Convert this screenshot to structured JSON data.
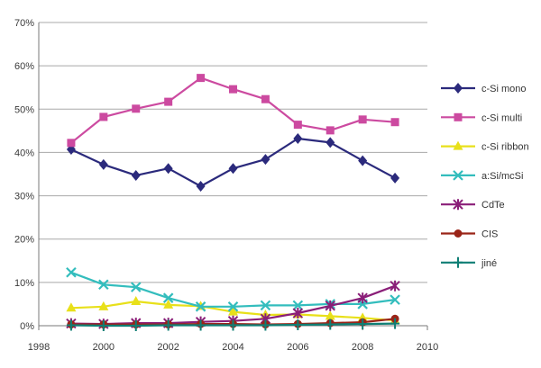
{
  "chart_data": {
    "type": "line",
    "xlim": [
      1998,
      2010
    ],
    "ylim": [
      0,
      70
    ],
    "x_ticks": [
      "1998",
      "2000",
      "2002",
      "2004",
      "2006",
      "2008",
      "2010"
    ],
    "y_ticks": [
      "0%",
      "10%",
      "20%",
      "30%",
      "40%",
      "50%",
      "60%",
      "70%"
    ],
    "grid": "horizontal",
    "legend_position": "right",
    "x": [
      1999,
      2000,
      2001,
      2002,
      2003,
      2004,
      2005,
      2006,
      2007,
      2008,
      2009
    ],
    "series": [
      {
        "name": "c-Si mono",
        "color": "#2b2a7c",
        "marker": "diamond",
        "values": [
          40.7,
          37.2,
          34.7,
          36.3,
          32.2,
          36.3,
          38.4,
          43.2,
          42.3,
          38.1,
          34.1
        ]
      },
      {
        "name": "c-Si multi",
        "color": "#cc4aa0",
        "marker": "square",
        "values": [
          42.2,
          48.2,
          50.1,
          51.7,
          57.2,
          54.6,
          52.3,
          46.4,
          45.1,
          47.6,
          47.0
        ]
      },
      {
        "name": "c-Si ribbon",
        "color": "#e8e01a",
        "marker": "triangle",
        "values": [
          4.1,
          4.4,
          5.6,
          4.8,
          4.5,
          3.2,
          2.5,
          2.6,
          2.2,
          1.8,
          1.2
        ]
      },
      {
        "name": "a:Si/mcSi",
        "color": "#33bdbd",
        "marker": "x",
        "values": [
          12.3,
          9.5,
          8.9,
          6.4,
          4.4,
          4.4,
          4.7,
          4.7,
          5.0,
          5.0,
          6.0
        ]
      },
      {
        "name": "CdTe",
        "color": "#8a1e78",
        "marker": "star",
        "values": [
          0.5,
          0.4,
          0.6,
          0.6,
          0.9,
          1.1,
          1.6,
          2.9,
          4.6,
          6.4,
          9.2
        ]
      },
      {
        "name": "CIS",
        "color": "#9a2418",
        "marker": "circle",
        "values": [
          0.3,
          0.3,
          0.3,
          0.3,
          0.4,
          0.4,
          0.3,
          0.4,
          0.6,
          0.8,
          1.6
        ]
      },
      {
        "name": "jiné",
        "color": "#0f7e74",
        "marker": "plus",
        "values": [
          0.1,
          0.0,
          0.0,
          0.1,
          0.1,
          0.1,
          0.1,
          0.2,
          0.3,
          0.4,
          0.5
        ]
      }
    ]
  }
}
